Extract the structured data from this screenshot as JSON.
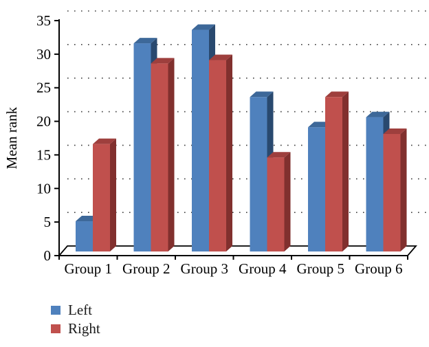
{
  "chart_data": {
    "type": "bar",
    "variant": "3d-clustered-column",
    "title": "",
    "categories": [
      "Group 1",
      "Group 2",
      "Group 3",
      "Group 4",
      "Group 5",
      "Group 6"
    ],
    "series": [
      {
        "name": "Left",
        "color": "#4f81bd",
        "color_top": "#3d6899",
        "color_side": "#29496f",
        "values": [
          4.5,
          31,
          33,
          23,
          18.5,
          20
        ]
      },
      {
        "name": "Right",
        "color": "#c0504d",
        "color_top": "#9e3f3d",
        "color_side": "#81302e",
        "values": [
          16,
          28,
          28.5,
          14,
          23,
          17.5
        ]
      }
    ],
    "xlabel": "",
    "ylabel": "Mean rank",
    "ylim": [
      0,
      35
    ],
    "ytick_step": 5,
    "grid": "dotted-horizontal-backwall",
    "grid_color": "#3c3c3c",
    "axis_color": "#000000",
    "text_color": "#000000",
    "legend_position": "bottom-left"
  }
}
